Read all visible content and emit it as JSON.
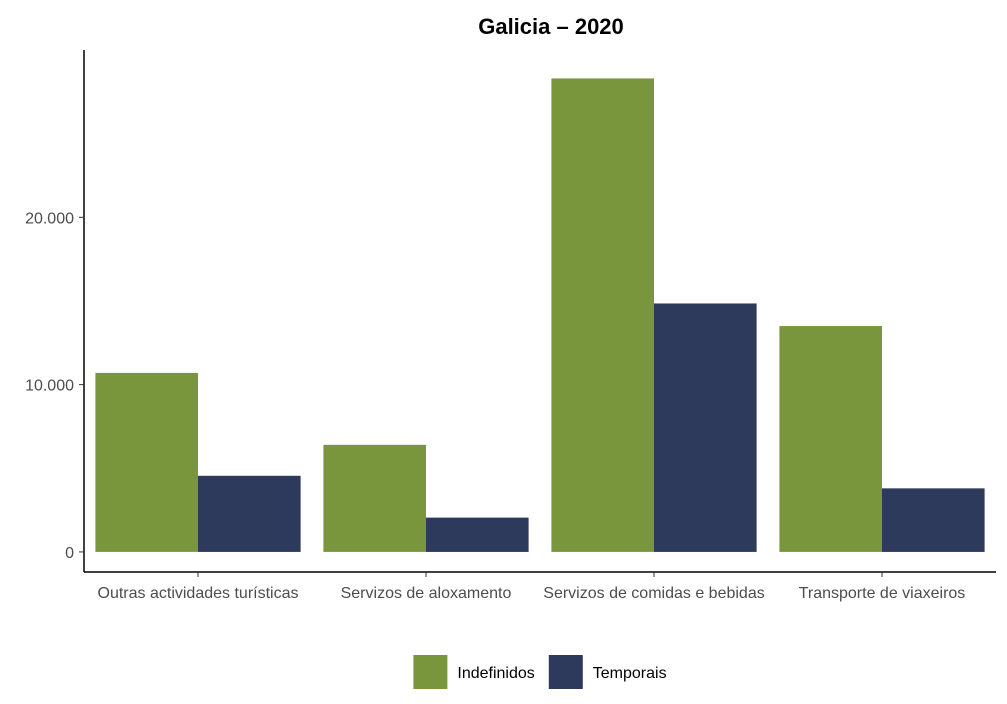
{
  "chart_data": {
    "type": "bar",
    "title": "Galicia – 2020",
    "xlabel": "",
    "ylabel": "",
    "categories": [
      "Outras actividades turísticas",
      "Servizos de aloxamento",
      "Servizos de comidas e bebidas",
      "Transporte de viaxeiros"
    ],
    "series": [
      {
        "name": "Indefinidos",
        "color": "#7a963c",
        "values": [
          10700,
          6400,
          28300,
          13500
        ]
      },
      {
        "name": "Temporais",
        "color": "#2d3a5b",
        "values": [
          4550,
          2050,
          14850,
          3800
        ]
      }
    ],
    "yticks": [
      0,
      10000,
      20000
    ],
    "ytick_labels": [
      "0",
      "10.000",
      "20.000"
    ],
    "ylim": [
      -1200,
      30000
    ],
    "grid": false,
    "legend_position": "bottom"
  }
}
